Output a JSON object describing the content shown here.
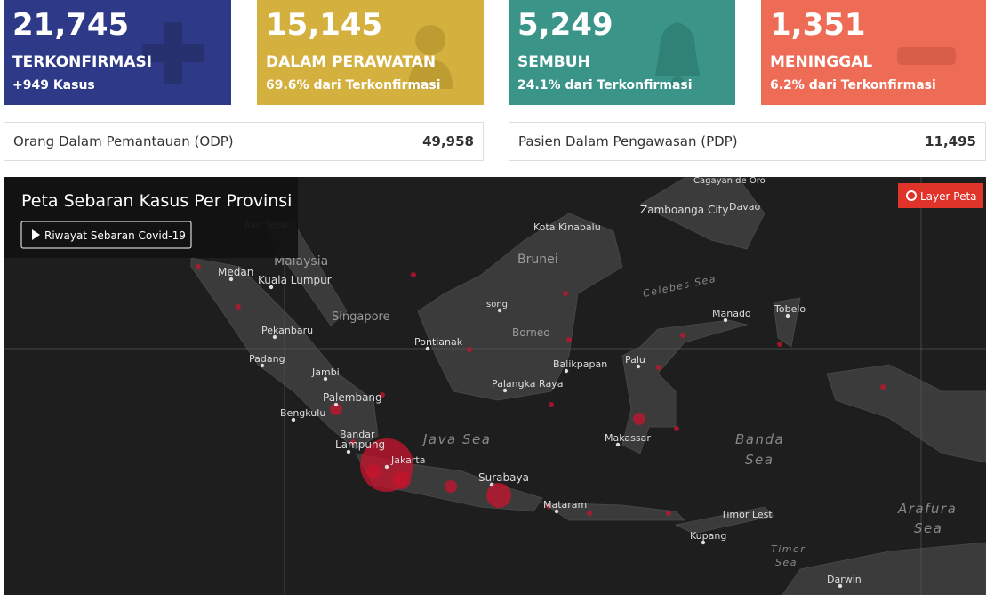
{
  "cards": [
    {
      "value": "21,745",
      "label": "TERKONFIRMASI",
      "sub": "+949 Kasus"
    },
    {
      "value": "15,145",
      "label": "DALAM PERAWATAN",
      "sub": "69.6% dari Terkonfirmasi"
    },
    {
      "value": "5,249",
      "label": "SEMBUH",
      "sub": "24.1% dari Terkonfirmasi"
    },
    {
      "value": "1,351",
      "label": "MENINGGAL",
      "sub": "6.2% dari Terkonfirmasi"
    }
  ],
  "stats": [
    {
      "label": "Orang Dalam Pemantauan (ODP)",
      "value": "49,958"
    },
    {
      "label": "Pasien Dalam Pengawasan (PDP)",
      "value": "11,495"
    }
  ],
  "map": {
    "title": "Peta Sebaran Kasus Per Provinsi",
    "button": "Riwayat Sebaran Covid-19",
    "layer_button": "Layer Peta",
    "labels": [
      "Cagayan de Oro",
      "Zamboanga City",
      "Davao",
      "Kota Kinabalu",
      "Alor Setar",
      "Malaysia",
      "Brunei",
      "Medan",
      "Kuala Lumpur",
      "Celebes Sea",
      "Singapore",
      "song",
      "Manado",
      "Tobelo",
      "Pekanbaru",
      "Pontianak",
      "Borneo",
      "Padang",
      "Balikpapan",
      "Palu",
      "Jambi",
      "Palangka Raya",
      "Palembang",
      "Bengkulu",
      "Bandar",
      "Lampung",
      "Java Sea",
      "Makassar",
      "Banda",
      "Sea",
      "Jakarta",
      "Surabaya",
      "Mataram",
      "Timor Lest",
      "Arafura",
      "Sea",
      "Kupang",
      "Timor",
      "Sea",
      "Darwin"
    ]
  }
}
